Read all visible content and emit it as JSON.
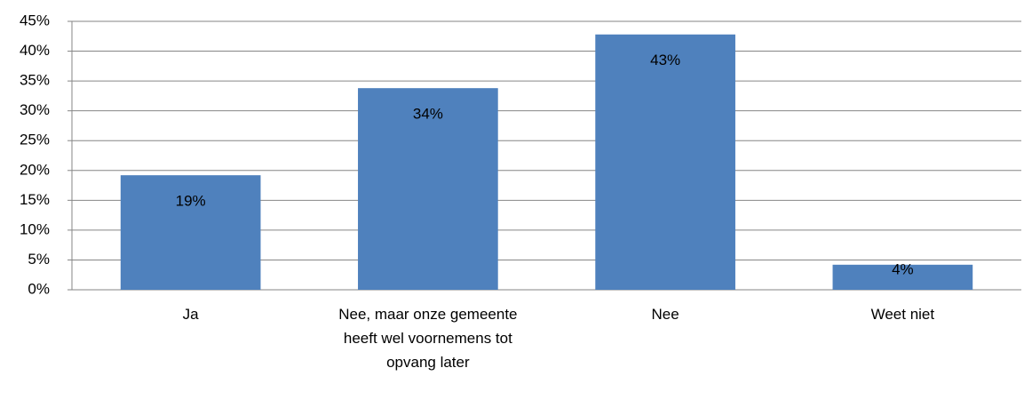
{
  "chart_data": {
    "type": "bar",
    "categories": [
      "Ja",
      "Nee, maar onze gemeente heeft wel voornemens tot opvang later",
      "Nee",
      "Weet niet"
    ],
    "values": [
      19.2,
      33.8,
      42.8,
      4.2
    ],
    "value_labels": [
      "19%",
      "34%",
      "43%",
      "4%"
    ],
    "color": "#4f81bd",
    "ylim": [
      0,
      45
    ],
    "yticks": [
      {
        "value": 0,
        "label": "0%"
      },
      {
        "value": 5,
        "label": "5%"
      },
      {
        "value": 10,
        "label": "10%"
      },
      {
        "value": 15,
        "label": "15%"
      },
      {
        "value": 20,
        "label": "20%"
      },
      {
        "value": 25,
        "label": "25%"
      },
      {
        "value": 30,
        "label": "30%"
      },
      {
        "value": 35,
        "label": "35%"
      },
      {
        "value": 40,
        "label": "40%"
      },
      {
        "value": 45,
        "label": "45%"
      }
    ],
    "grid": true
  }
}
